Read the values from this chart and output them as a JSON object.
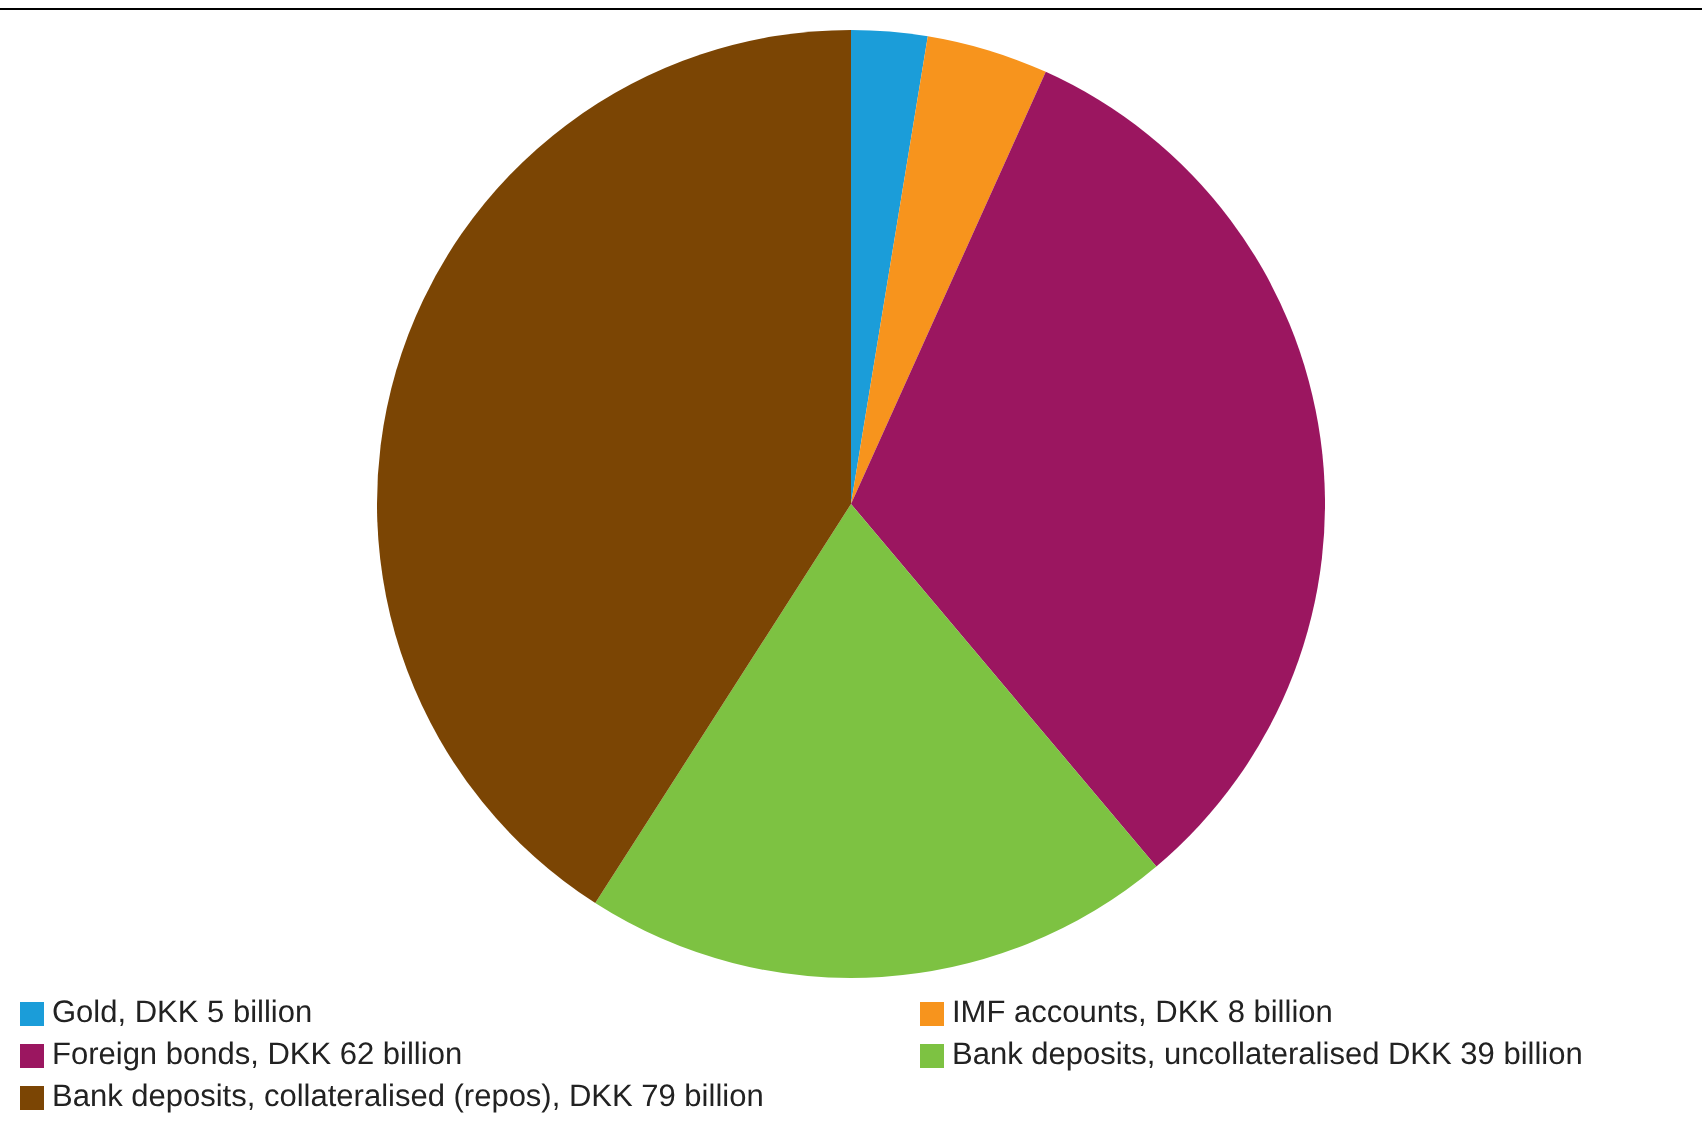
{
  "chart_data": {
    "type": "pie",
    "categories": [
      "Gold, DKK 5 billion",
      "IMF accounts, DKK 8 billion",
      "Foreign bonds, DKK 62 billion",
      "Bank deposits, uncollateralised DKK 39 billion",
      "Bank deposits, collateralised (repos), DKK 79 billion"
    ],
    "values": [
      2.59,
      4.15,
      32.12,
      20.21,
      40.93
    ],
    "colors": [
      "#1b9dd9",
      "#f7941d",
      "#9b1660",
      "#7dc242",
      "#7b4504"
    ],
    "legend": "bottom"
  }
}
